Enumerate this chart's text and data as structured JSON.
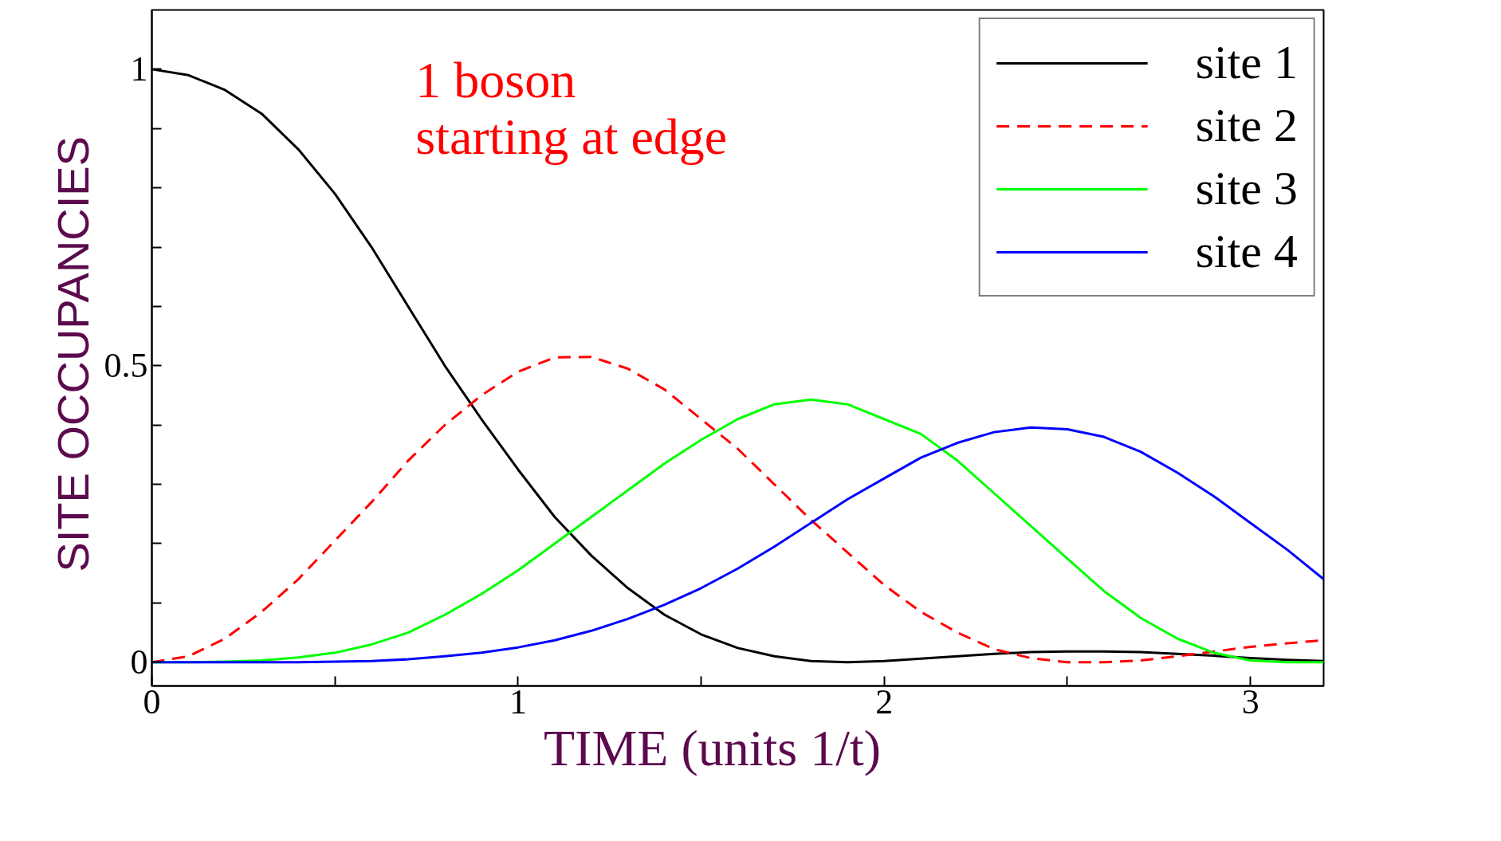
{
  "chart_data": {
    "type": "line",
    "xlabel": "TIME    (units  1/t)",
    "ylabel": "SITE  OCCUPANCIES",
    "annotations": [
      "1 boson\n starting at edge"
    ],
    "x": [
      0,
      0.1,
      0.2,
      0.3,
      0.4,
      0.5,
      0.6,
      0.7,
      0.8,
      0.9,
      1.0,
      1.1,
      1.2,
      1.3,
      1.4,
      1.5,
      1.6,
      1.7,
      1.8,
      1.9,
      2.0,
      2.1,
      2.2,
      2.3,
      2.4,
      2.5,
      2.6,
      2.7,
      2.8,
      2.9,
      3.0,
      3.1,
      3.2
    ],
    "series": [
      {
        "name": "site 1",
        "color": "#000000",
        "line_style": "solid",
        "values": [
          1,
          0.99,
          0.965,
          0.925,
          0.865,
          0.79,
          0.7,
          0.6,
          0.5,
          0.41,
          0.325,
          0.245,
          0.18,
          0.125,
          0.08,
          0.047,
          0.024,
          0.01,
          0.002,
          0,
          0.002,
          0.006,
          0.01,
          0.014,
          0.017,
          0.018,
          0.018,
          0.017,
          0.014,
          0.011,
          0.007,
          0.004,
          0.002
        ]
      },
      {
        "name": "site 2",
        "color": "#ff0000",
        "line_style": "dashed",
        "values": [
          0,
          0.01,
          0.04,
          0.085,
          0.14,
          0.205,
          0.27,
          0.34,
          0.4,
          0.45,
          0.49,
          0.514,
          0.515,
          0.495,
          0.46,
          0.41,
          0.36,
          0.3,
          0.24,
          0.185,
          0.13,
          0.085,
          0.05,
          0.022,
          0.007,
          0,
          0,
          0.003,
          0.01,
          0.018,
          0.026,
          0.032,
          0.037
        ]
      },
      {
        "name": "site 3",
        "color": "#00ff00",
        "line_style": "solid",
        "values": [
          0,
          0,
          0.001,
          0.003,
          0.008,
          0.016,
          0.03,
          0.05,
          0.08,
          0.115,
          0.155,
          0.2,
          0.245,
          0.29,
          0.335,
          0.375,
          0.41,
          0.435,
          0.443,
          0.435,
          0.41,
          0.385,
          0.34,
          0.285,
          0.23,
          0.175,
          0.12,
          0.075,
          0.04,
          0.016,
          0.003,
          0,
          0
        ]
      },
      {
        "name": "site 4",
        "color": "#0000ff",
        "line_style": "solid",
        "values": [
          0,
          0,
          0,
          0,
          0,
          0.001,
          0.002,
          0.005,
          0.01,
          0.016,
          0.025,
          0.037,
          0.053,
          0.073,
          0.097,
          0.125,
          0.158,
          0.195,
          0.235,
          0.275,
          0.31,
          0.345,
          0.37,
          0.388,
          0.396,
          0.393,
          0.38,
          0.355,
          0.32,
          0.28,
          0.235,
          0.19,
          0.14
        ]
      }
    ],
    "xlim": [
      0,
      3.2
    ],
    "ylim": [
      -0.04,
      1.1
    ],
    "xticks": [
      0,
      {
        "value": 0.5,
        "label": null
      },
      1,
      {
        "value": 1.5,
        "label": null
      },
      2,
      {
        "value": 2.5,
        "label": null
      },
      3
    ],
    "yticks": [
      0,
      {
        "value": 0.1,
        "label": null
      },
      {
        "value": 0.2,
        "label": null
      },
      {
        "value": 0.3,
        "label": null
      },
      {
        "value": 0.4,
        "label": null
      },
      0.5,
      {
        "value": 0.6,
        "label": null
      },
      {
        "value": 0.7,
        "label": null
      },
      {
        "value": 0.8,
        "label": null
      },
      {
        "value": 0.9,
        "label": null
      },
      1
    ],
    "grid": false,
    "legend": "top right"
  }
}
